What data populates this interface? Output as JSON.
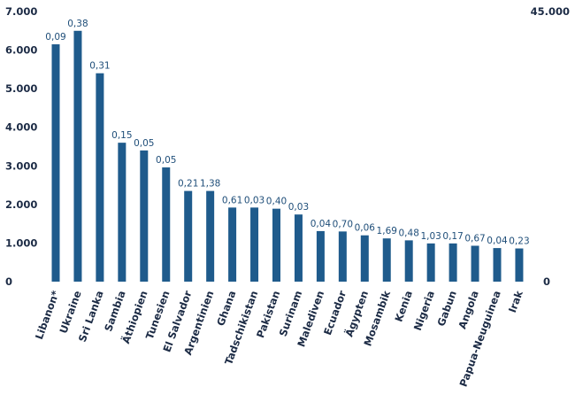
{
  "chart_data": {
    "type": "bar",
    "categories": [
      "Libanon*",
      "Ukraine",
      "Sri Lanka",
      "Sambia",
      "Äthiopien",
      "Tunesien",
      "El Salvador",
      "Argentinien",
      "Ghana",
      "Tadschikistan",
      "Pakistan",
      "Surinam",
      "Malediven",
      "Ecuador",
      "Ägypten",
      "Mosambik",
      "Kenia",
      "Nigeria",
      "Gabun",
      "Angola",
      "Papua-Neuguinea",
      "Irak"
    ],
    "values": [
      6150,
      6500,
      5400,
      3600,
      3400,
      2960,
      2350,
      2350,
      1920,
      1920,
      1890,
      1740,
      1310,
      1300,
      1200,
      1120,
      1070,
      990,
      990,
      930,
      870,
      860
    ],
    "data_labels": [
      "0,09",
      "0,38",
      "0,31",
      "0,15",
      "0,05",
      "0,05",
      "0,21",
      "1,38",
      "0,61",
      "0,03",
      "0,40",
      "0,03",
      "0,04",
      "0,70",
      "0,06",
      "1,69",
      "0,48",
      "1,03",
      "0,17",
      "0,67",
      "0,04",
      "0,23"
    ],
    "ylim": [
      0,
      7000
    ],
    "y_ticks": [
      "0",
      "1.000",
      "2.000",
      "3.000",
      "4.000",
      "5.000",
      "6.000",
      "7.000"
    ],
    "y2_ticks": [
      "0",
      "45.000"
    ],
    "grid": false,
    "colors": {
      "bar": "#1f5b8c",
      "text": "#1c2b45",
      "label": "#1f4e79"
    }
  }
}
